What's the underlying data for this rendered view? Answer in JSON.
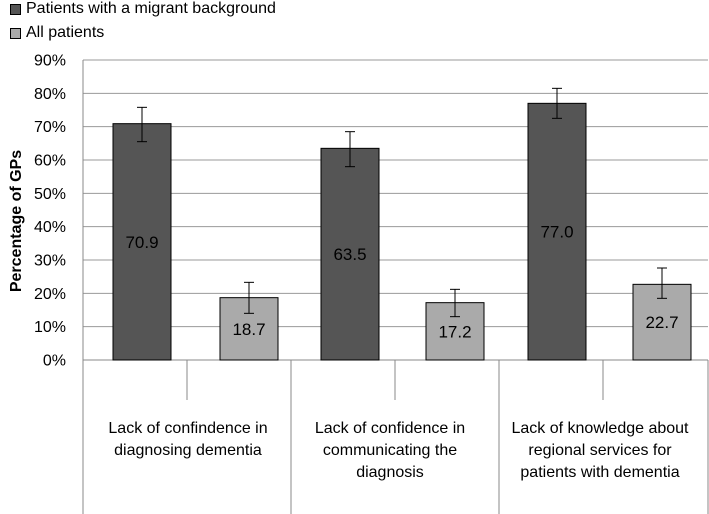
{
  "chart_data": {
    "type": "bar",
    "title": "",
    "xlabel": "",
    "ylabel": "Percentage of GPs",
    "ylim": [
      0,
      90
    ],
    "y_ticks": [
      "0%",
      "10%",
      "20%",
      "30%",
      "40%",
      "50%",
      "60%",
      "70%",
      "80%",
      "90%"
    ],
    "y_tick_values": [
      0,
      10,
      20,
      30,
      40,
      50,
      60,
      70,
      80,
      90
    ],
    "grid": true,
    "legend_position": "top-left",
    "categories": [
      "Lack of confindence in diagnosing dementia",
      "Lack of confidence in communicating the diagnosis",
      "Lack of knowledge about regional services for patients with dementia"
    ],
    "series": [
      {
        "name": "Patients with a migrant background",
        "color": "#555555",
        "values": [
          70.9,
          63.5,
          77.0
        ],
        "labels": [
          "70.9",
          "63.5",
          "77.0"
        ],
        "error_low": [
          65.5,
          58.0,
          72.5
        ],
        "error_high": [
          75.8,
          68.5,
          81.5
        ]
      },
      {
        "name": "All patients",
        "color": "#aaaaaa",
        "values": [
          18.7,
          17.2,
          22.7
        ],
        "labels": [
          "18.7",
          "17.2",
          "22.7"
        ],
        "error_low": [
          14.0,
          13.0,
          18.5
        ],
        "error_high": [
          23.3,
          21.2,
          27.6
        ]
      }
    ]
  }
}
